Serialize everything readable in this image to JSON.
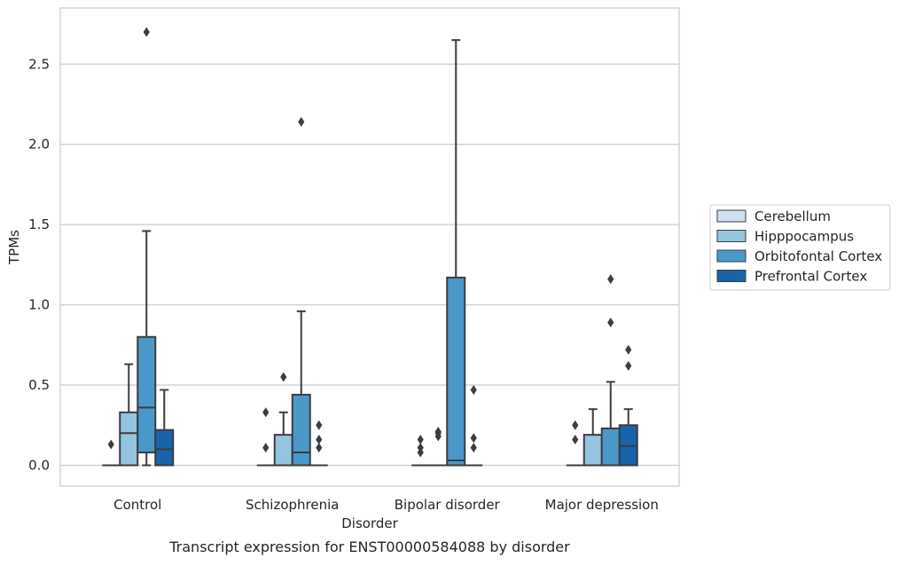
{
  "chart_data": {
    "type": "boxplot",
    "caption": "Transcript expression for ENST00000584088 by disorder",
    "xlabel": "Disorder",
    "ylabel": "TPMs",
    "ylim": [
      -0.13,
      2.85
    ],
    "yticks": [
      0.0,
      0.5,
      1.0,
      1.5,
      2.0,
      2.5
    ],
    "ytick_labels": [
      "0.0",
      "0.5",
      "1.0",
      "1.5",
      "2.0",
      "2.5"
    ],
    "grid": "horizontal",
    "legend_position": "right",
    "categories": [
      "Control",
      "Schizophrenia",
      "Bipolar disorder",
      "Major depression"
    ],
    "series": [
      {
        "name": "Cerebellum",
        "color": "#d0e1f2",
        "boxes": [
          {
            "q1": 0.0,
            "median": 0.0,
            "q3": 0.0,
            "whisker_low": 0.0,
            "whisker_high": 0.0,
            "outliers": [
              0.13
            ]
          },
          {
            "q1": 0.0,
            "median": 0.0,
            "q3": 0.0,
            "whisker_low": 0.0,
            "whisker_high": 0.0,
            "outliers": [
              0.11,
              0.33
            ]
          },
          {
            "q1": 0.0,
            "median": 0.0,
            "q3": 0.0,
            "whisker_low": 0.0,
            "whisker_high": 0.0,
            "outliers": [
              0.08,
              0.11,
              0.16
            ]
          },
          {
            "q1": 0.0,
            "median": 0.0,
            "q3": 0.0,
            "whisker_low": 0.0,
            "whisker_high": 0.0,
            "outliers": [
              0.16,
              0.25
            ]
          }
        ]
      },
      {
        "name": "Hipppocampus",
        "color": "#94c4df",
        "boxes": [
          {
            "q1": 0.0,
            "median": 0.2,
            "q3": 0.33,
            "whisker_low": 0.0,
            "whisker_high": 0.63,
            "outliers": []
          },
          {
            "q1": 0.0,
            "median": 0.0,
            "q3": 0.19,
            "whisker_low": 0.0,
            "whisker_high": 0.33,
            "outliers": [
              0.55
            ]
          },
          {
            "q1": 0.0,
            "median": 0.0,
            "q3": 0.0,
            "whisker_low": 0.0,
            "whisker_high": 0.0,
            "outliers": [
              0.18,
              0.2,
              0.21
            ]
          },
          {
            "q1": 0.0,
            "median": 0.0,
            "q3": 0.19,
            "whisker_low": 0.0,
            "whisker_high": 0.35,
            "outliers": []
          }
        ]
      },
      {
        "name": "Orbitofontal Cortex",
        "color": "#4a98c9",
        "boxes": [
          {
            "q1": 0.08,
            "median": 0.36,
            "q3": 0.8,
            "whisker_low": 0.0,
            "whisker_high": 1.46,
            "outliers": [
              2.7
            ]
          },
          {
            "q1": 0.0,
            "median": 0.08,
            "q3": 0.44,
            "whisker_low": 0.0,
            "whisker_high": 0.96,
            "outliers": [
              2.14
            ]
          },
          {
            "q1": 0.0,
            "median": 0.03,
            "q3": 1.17,
            "whisker_low": 0.0,
            "whisker_high": 2.65,
            "outliers": []
          },
          {
            "q1": 0.0,
            "median": 0.0,
            "q3": 0.23,
            "whisker_low": 0.0,
            "whisker_high": 0.52,
            "outliers": [
              0.89,
              1.16
            ]
          }
        ]
      },
      {
        "name": "Prefrontal Cortex",
        "color": "#1764ab",
        "boxes": [
          {
            "q1": 0.0,
            "median": 0.1,
            "q3": 0.22,
            "whisker_low": 0.0,
            "whisker_high": 0.47,
            "outliers": []
          },
          {
            "q1": 0.0,
            "median": 0.0,
            "q3": 0.0,
            "whisker_low": 0.0,
            "whisker_high": 0.0,
            "outliers": [
              0.11,
              0.16,
              0.25
            ]
          },
          {
            "q1": 0.0,
            "median": 0.0,
            "q3": 0.0,
            "whisker_low": 0.0,
            "whisker_high": 0.0,
            "outliers": [
              0.11,
              0.17,
              0.47
            ]
          },
          {
            "q1": 0.0,
            "median": 0.12,
            "q3": 0.25,
            "whisker_low": 0.0,
            "whisker_high": 0.35,
            "outliers": [
              0.62,
              0.72
            ]
          }
        ]
      }
    ]
  }
}
